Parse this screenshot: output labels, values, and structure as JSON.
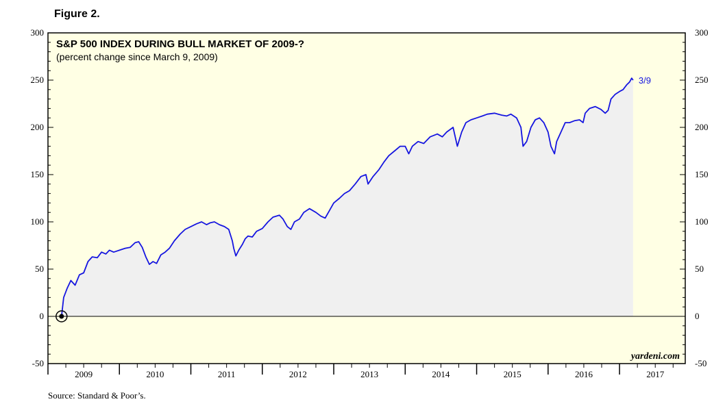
{
  "figure_label": "Figure 2.",
  "source": "Source: Standard & Poor’s.",
  "brand": "yardeni.com",
  "colors": {
    "plot_background": "#FFFFE4",
    "area_fill": "#F0F0F0",
    "line": "#1515E0",
    "end_label": "#1515E0"
  },
  "chart_data": {
    "type": "line",
    "title": "S&P 500 INDEX DURING BULL MARKET OF 2009-?",
    "subtitle": "(percent change since March 9, 2009)",
    "ylim": [
      -50,
      300
    ],
    "yticks": [
      -50,
      0,
      50,
      100,
      150,
      200,
      250,
      300
    ],
    "xlim": [
      2009.0,
      2017.92
    ],
    "xtick_labels": [
      "2009",
      "2010",
      "2011",
      "2012",
      "2013",
      "2014",
      "2015",
      "2016",
      "2017"
    ],
    "grid": false,
    "area_below_line": true,
    "end_label": "3/9",
    "series": [
      {
        "x": [
          2009.19,
          2009.22,
          2009.27,
          2009.32,
          2009.38,
          2009.44,
          2009.5,
          2009.56,
          2009.62,
          2009.69,
          2009.75,
          2009.81,
          2009.86,
          2009.92,
          2010.0,
          2010.08,
          2010.15,
          2010.22,
          2010.27,
          2010.32,
          2010.37,
          2010.42,
          2010.47,
          2010.52,
          2010.58,
          2010.64,
          2010.7,
          2010.77,
          2010.85,
          2010.92,
          2011.0,
          2011.08,
          2011.15,
          2011.22,
          2011.27,
          2011.33,
          2011.4,
          2011.47,
          2011.53,
          2011.58,
          2011.6,
          2011.63,
          2011.67,
          2011.72,
          2011.76,
          2011.8,
          2011.86,
          2011.92,
          2012.0,
          2012.08,
          2012.15,
          2012.24,
          2012.29,
          2012.35,
          2012.4,
          2012.45,
          2012.52,
          2012.58,
          2012.66,
          2012.75,
          2012.82,
          2012.88,
          2012.94,
          2013.0,
          2013.08,
          2013.15,
          2013.22,
          2013.3,
          2013.38,
          2013.45,
          2013.48,
          2013.55,
          2013.63,
          2013.7,
          2013.77,
          2013.85,
          2013.93,
          2014.0,
          2014.05,
          2014.1,
          2014.18,
          2014.26,
          2014.35,
          2014.45,
          2014.52,
          2014.58,
          2014.67,
          2014.73,
          2014.79,
          2014.85,
          2014.92,
          2015.0,
          2015.08,
          2015.15,
          2015.25,
          2015.35,
          2015.42,
          2015.48,
          2015.56,
          2015.62,
          2015.65,
          2015.7,
          2015.76,
          2015.82,
          2015.88,
          2015.94,
          2016.0,
          2016.04,
          2016.09,
          2016.12,
          2016.18,
          2016.24,
          2016.3,
          2016.37,
          2016.44,
          2016.49,
          2016.52,
          2016.58,
          2016.66,
          2016.74,
          2016.8,
          2016.84,
          2016.88,
          2016.94,
          2017.0,
          2017.05,
          2017.1,
          2017.14,
          2017.17,
          2017.19
        ],
        "y": [
          0,
          20,
          30,
          38,
          33,
          44,
          46,
          58,
          63,
          62,
          68,
          66,
          70,
          68,
          70,
          72,
          73,
          78,
          79,
          73,
          63,
          55,
          58,
          56,
          65,
          68,
          72,
          80,
          87,
          92,
          95,
          98,
          100,
          97,
          99,
          100,
          97,
          95,
          92,
          80,
          72,
          64,
          70,
          76,
          82,
          85,
          84,
          90,
          93,
          100,
          105,
          107,
          103,
          95,
          92,
          100,
          103,
          110,
          114,
          110,
          106,
          104,
          112,
          120,
          125,
          130,
          133,
          140,
          148,
          150,
          140,
          148,
          155,
          163,
          170,
          175,
          180,
          180,
          172,
          180,
          185,
          183,
          190,
          193,
          190,
          195,
          200,
          180,
          195,
          205,
          208,
          210,
          212,
          214,
          215,
          213,
          212,
          214,
          210,
          200,
          180,
          185,
          200,
          208,
          210,
          205,
          195,
          180,
          172,
          185,
          195,
          205,
          205,
          207,
          208,
          205,
          215,
          220,
          222,
          219,
          215,
          218,
          230,
          235,
          238,
          240,
          245,
          248,
          252,
          250
        ]
      }
    ]
  }
}
